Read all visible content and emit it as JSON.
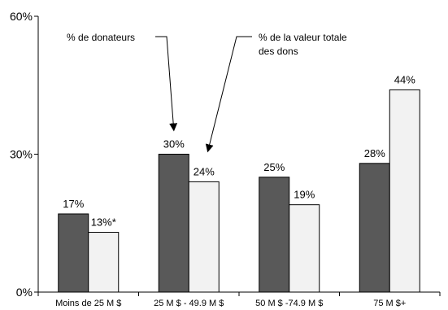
{
  "chart_data": {
    "type": "bar",
    "categories": [
      "Moins de 25 M $",
      "25 M $ - 49.9 M $",
      "50 M $ -74.9 M $",
      "75 M $+"
    ],
    "series": [
      {
        "name": "% de donateurs",
        "values": [
          17,
          30,
          25,
          28
        ],
        "labels": [
          "17%",
          "30%",
          "25%",
          "28%"
        ],
        "color": "#595959"
      },
      {
        "name": "% de la valeur totale des dons",
        "values": [
          13,
          24,
          19,
          44
        ],
        "labels": [
          "13%*",
          "24%",
          "19%",
          "44%"
        ],
        "color": "#f2f2f2"
      }
    ],
    "y_ticks": [
      "0%",
      "30%",
      "60%"
    ],
    "ylim": [
      0,
      60
    ],
    "grid": false,
    "annotations": [
      {
        "lines": [
          "% de donateurs"
        ],
        "series": 0,
        "category": 1
      },
      {
        "lines": [
          "% de la valeur totale",
          "des dons"
        ],
        "series": 1,
        "category": 1
      }
    ]
  }
}
